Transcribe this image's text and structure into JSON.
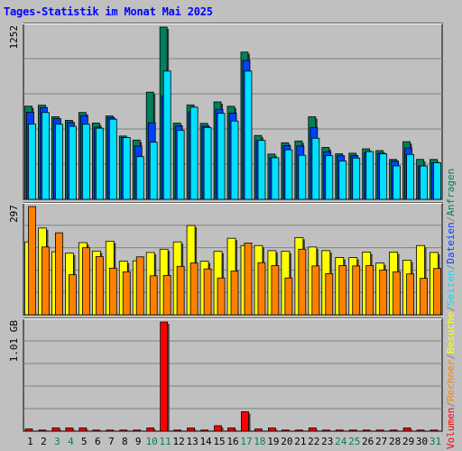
{
  "title": "Tages-Statistik im Monat Mai 2025",
  "colors": {
    "background": "#c0c0c0",
    "title": "#0000ff",
    "anfragen": "#00805c",
    "dateien": "#0040ff",
    "seiten": "#00e0ff",
    "besuche": "#ffff00",
    "rechner": "#ff8000",
    "volumen": "#ff0000",
    "weekend_label": "#00805c",
    "weekday_label": "#000000"
  },
  "legend": {
    "volumen": "Volumen",
    "rechner": "Rechner",
    "besuche": "Besuche",
    "seiten": "Seiten",
    "dateien": "Dateien",
    "anfragen": "Anfragen",
    "separator": "/"
  },
  "chart_data": [
    {
      "type": "bar",
      "panel": "top",
      "ymax_label": "1252",
      "ylim": [
        0,
        1252
      ],
      "grid": true,
      "categories": [
        "1",
        "2",
        "3",
        "4",
        "5",
        "6",
        "7",
        "8",
        "9",
        "10",
        "11",
        "12",
        "13",
        "14",
        "15",
        "16",
        "17",
        "18",
        "19",
        "20",
        "21",
        "22",
        "23",
        "24",
        "25",
        "26",
        "27",
        "28",
        "29",
        "30",
        "31"
      ],
      "weekend_days": [
        "3",
        "4",
        "10",
        "11",
        "17",
        "18",
        "24",
        "25",
        "31"
      ],
      "series": [
        {
          "name": "Anfragen",
          "values": [
            677,
            684,
            600,
            574,
            631,
            554,
            606,
            460,
            431,
            779,
            1252,
            554,
            686,
            552,
            708,
            676,
            1070,
            464,
            329,
            411,
            424,
            600,
            377,
            331,
            335,
            367,
            354,
            290,
            419,
            290,
            290
          ]
        },
        {
          "name": "Dateien",
          "values": [
            633,
            667,
            586,
            559,
            608,
            524,
            593,
            450,
            387,
            556,
            750,
            533,
            637,
            531,
            654,
            626,
            1009,
            428,
            302,
            390,
            387,
            521,
            346,
            316,
            317,
            340,
            335,
            279,
            373,
            242,
            266
          ]
        },
        {
          "name": "Seiten",
          "values": [
            547,
            631,
            546,
            531,
            546,
            517,
            582,
            449,
            310,
            415,
            932,
            502,
            670,
            522,
            625,
            569,
            932,
            428,
            302,
            360,
            320,
            444,
            317,
            279,
            300,
            347,
            331,
            243,
            326,
            242,
            266
          ]
        }
      ]
    },
    {
      "type": "bar",
      "panel": "middle",
      "ymax_label": "297",
      "ylim": [
        0,
        297
      ],
      "grid": true,
      "categories": [
        "1",
        "2",
        "3",
        "4",
        "5",
        "6",
        "7",
        "8",
        "9",
        "10",
        "11",
        "12",
        "13",
        "14",
        "15",
        "16",
        "17",
        "18",
        "19",
        "20",
        "21",
        "22",
        "23",
        "24",
        "25",
        "26",
        "27",
        "28",
        "29",
        "30",
        "31"
      ],
      "series": [
        {
          "name": "Besuche",
          "values": [
            200,
            238,
            173,
            169,
            198,
            175,
            202,
            147,
            148,
            171,
            180,
            200,
            245,
            147,
            174,
            210,
            190,
            190,
            176,
            174,
            212,
            186,
            176,
            157,
            157,
            172,
            142,
            172,
            150,
            190,
            171
          ]
        },
        {
          "name": "Rechner",
          "values": [
            297,
            186,
            225,
            110,
            184,
            160,
            128,
            118,
            159,
            107,
            108,
            133,
            142,
            126,
            101,
            120,
            197,
            143,
            135,
            101,
            180,
            134,
            113,
            135,
            134,
            135,
            123,
            118,
            112,
            100,
            127
          ]
        }
      ]
    },
    {
      "type": "bar",
      "panel": "bottom",
      "ymax_label": "1.01 GB",
      "ylim": [
        0,
        1.01
      ],
      "unit": "GB",
      "grid": true,
      "categories": [
        "1",
        "2",
        "3",
        "4",
        "5",
        "6",
        "7",
        "8",
        "9",
        "10",
        "11",
        "12",
        "13",
        "14",
        "15",
        "16",
        "17",
        "18",
        "19",
        "20",
        "21",
        "22",
        "23",
        "24",
        "25",
        "26",
        "27",
        "28",
        "29",
        "30",
        "31"
      ],
      "series": [
        {
          "name": "Volumen",
          "values": [
            0.02,
            0.01,
            0.03,
            0.03,
            0.03,
            0.01,
            0.01,
            0.01,
            0.01,
            0.03,
            1.01,
            0.01,
            0.03,
            0.01,
            0.05,
            0.03,
            0.18,
            0.02,
            0.03,
            0.01,
            0.01,
            0.03,
            0.01,
            0.01,
            0.01,
            0.01,
            0.01,
            0.01,
            0.03,
            0.01,
            0.01
          ]
        }
      ]
    }
  ]
}
